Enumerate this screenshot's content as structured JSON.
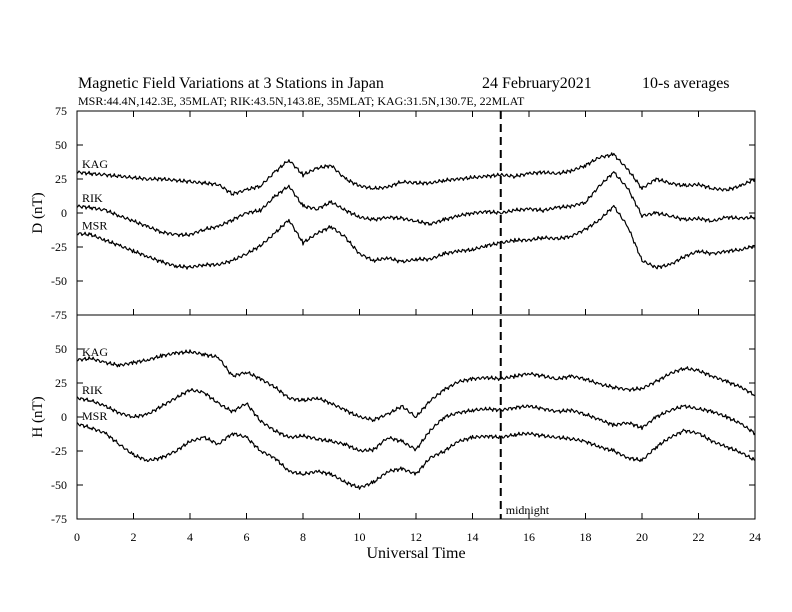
{
  "chart_data": {
    "type": "line",
    "title": "Magnetic Field Variations at 3 Stations in Japan",
    "date": "24 February2021",
    "averaging": "10-s averages",
    "subtitle": "MSR:44.4N,142.3E, 35MLAT;  RIK:43.5N,143.8E, 35MLAT;  KAG:31.5N,130.7E, 22MLAT",
    "xlabel": "Universal Time",
    "xlim": [
      0,
      24
    ],
    "xticks": [
      "0",
      "2",
      "4",
      "6",
      "8",
      "10",
      "12",
      "14",
      "16",
      "18",
      "20",
      "22",
      "24"
    ],
    "grid": false,
    "annotation": {
      "x": 15,
      "label": "midnight",
      "style": "dashed"
    },
    "panels": [
      {
        "ylabel": "D (nT)",
        "ylim": [
          -75,
          75
        ],
        "yticks": [
          "75",
          "50",
          "25",
          "0",
          "-25",
          "-50",
          "-75"
        ],
        "series": [
          {
            "name": "KAG",
            "x": [
              0,
              0.5,
              1,
              1.5,
              2,
              2.5,
              3,
              3.5,
              4,
              4.5,
              5,
              5.5,
              6,
              6.5,
              7,
              7.5,
              8,
              8.5,
              9,
              9.5,
              10,
              10.5,
              11,
              11.5,
              12,
              12.5,
              13,
              13.5,
              14,
              14.5,
              15,
              15.5,
              16,
              16.5,
              17,
              17.5,
              18,
              18.5,
              19,
              19.5,
              20,
              20.5,
              21,
              21.5,
              22,
              22.5,
              23,
              23.5,
              24
            ],
            "y": [
              30,
              29,
              28,
              27,
              26,
              25,
              25,
              24,
              23,
              22,
              21,
              14,
              17,
              20,
              30,
              39,
              28,
              33,
              35,
              25,
              20,
              18,
              19,
              23,
              22,
              22,
              24,
              25,
              26,
              27,
              28,
              27,
              29,
              30,
              29,
              31,
              35,
              41,
              43,
              32,
              18,
              25,
              22,
              20,
              21,
              18,
              17,
              20,
              25
            ]
          },
          {
            "name": "RIK",
            "x": [
              0,
              0.5,
              1,
              1.5,
              2,
              2.5,
              3,
              3.5,
              4,
              4.5,
              5,
              5.5,
              6,
              6.5,
              7,
              7.5,
              8,
              8.5,
              9,
              9.5,
              10,
              10.5,
              11,
              11.5,
              12,
              12.5,
              13,
              13.5,
              14,
              14.5,
              15,
              15.5,
              16,
              16.5,
              17,
              17.5,
              18,
              18.5,
              19,
              19.5,
              20,
              20.5,
              21,
              21.5,
              22,
              22.5,
              23,
              23.5,
              24
            ],
            "y": [
              5,
              4,
              2,
              -2,
              -6,
              -10,
              -14,
              -16,
              -16,
              -12,
              -10,
              -5,
              0,
              2,
              12,
              20,
              5,
              3,
              8,
              2,
              -3,
              -5,
              -3,
              -4,
              -6,
              -8,
              -5,
              -2,
              0,
              1,
              0,
              2,
              3,
              2,
              4,
              5,
              8,
              20,
              30,
              18,
              -2,
              0,
              -2,
              -5,
              -4,
              -6,
              -3,
              -4,
              -3
            ]
          },
          {
            "name": "MSR",
            "x": [
              0,
              0.5,
              1,
              1.5,
              2,
              2.5,
              3,
              3.5,
              4,
              4.5,
              5,
              5.5,
              6,
              6.5,
              7,
              7.5,
              8,
              8.5,
              9,
              9.5,
              10,
              10.5,
              11,
              11.5,
              12,
              12.5,
              13,
              13.5,
              14,
              14.5,
              15,
              15.5,
              16,
              16.5,
              17,
              17.5,
              18,
              18.5,
              19,
              19.5,
              20,
              20.5,
              21,
              21.5,
              22,
              22.5,
              23,
              23.5,
              24
            ],
            "y": [
              -15,
              -16,
              -20,
              -24,
              -28,
              -32,
              -36,
              -39,
              -40,
              -38,
              -38,
              -35,
              -30,
              -24,
              -15,
              -5,
              -22,
              -15,
              -10,
              -18,
              -30,
              -35,
              -33,
              -36,
              -34,
              -34,
              -30,
              -28,
              -27,
              -24,
              -22,
              -20,
              -20,
              -18,
              -19,
              -17,
              -12,
              -5,
              5,
              -10,
              -35,
              -40,
              -38,
              -32,
              -28,
              -30,
              -28,
              -27,
              -24
            ]
          }
        ]
      },
      {
        "ylabel": "H (nT)",
        "ylim": [
          -75,
          75
        ],
        "yticks": [
          "75",
          "50",
          "25",
          "0",
          "-25",
          "-50",
          "-75"
        ],
        "series": [
          {
            "name": "KAG",
            "x": [
              0,
              0.5,
              1,
              1.5,
              2,
              2.5,
              3,
              3.5,
              4,
              4.5,
              5,
              5.5,
              6,
              6.5,
              7,
              7.5,
              8,
              8.5,
              9,
              9.5,
              10,
              10.5,
              11,
              11.5,
              12,
              12.5,
              13,
              13.5,
              14,
              14.5,
              15,
              15.5,
              16,
              16.5,
              17,
              17.5,
              18,
              18.5,
              19,
              19.5,
              20,
              20.5,
              21,
              21.5,
              22,
              22.5,
              23,
              23.5,
              24
            ],
            "y": [
              42,
              43,
              40,
              38,
              40,
              42,
              45,
              47,
              48,
              46,
              44,
              30,
              33,
              28,
              22,
              14,
              12,
              14,
              10,
              5,
              0,
              -2,
              2,
              8,
              0,
              12,
              20,
              26,
              28,
              29,
              28,
              30,
              32,
              30,
              28,
              30,
              28,
              24,
              22,
              20,
              21,
              26,
              32,
              36,
              34,
              30,
              26,
              22,
              16
            ]
          },
          {
            "name": "RIK",
            "x": [
              0,
              0.5,
              1,
              1.5,
              2,
              2.5,
              3,
              3.5,
              4,
              4.5,
              5,
              5.5,
              6,
              6.5,
              7,
              7.5,
              8,
              8.5,
              9,
              9.5,
              10,
              10.5,
              11,
              11.5,
              12,
              12.5,
              13,
              13.5,
              14,
              14.5,
              15,
              15.5,
              16,
              16.5,
              17,
              17.5,
              18,
              18.5,
              19,
              19.5,
              20,
              20.5,
              21,
              21.5,
              22,
              22.5,
              23,
              23.5,
              24
            ],
            "y": [
              14,
              12,
              8,
              3,
              0,
              2,
              8,
              14,
              20,
              18,
              10,
              4,
              10,
              -3,
              -10,
              -15,
              -14,
              -16,
              -18,
              -20,
              -25,
              -24,
              -15,
              -18,
              -24,
              -10,
              0,
              3,
              5,
              6,
              5,
              7,
              8,
              6,
              4,
              5,
              2,
              -2,
              -6,
              -4,
              -8,
              0,
              5,
              8,
              6,
              4,
              0,
              -5,
              -12
            ]
          },
          {
            "name": "MSR",
            "x": [
              0,
              0.5,
              1,
              1.5,
              2,
              2.5,
              3,
              3.5,
              4,
              4.5,
              5,
              5.5,
              6,
              6.5,
              7,
              7.5,
              8,
              8.5,
              9,
              9.5,
              10,
              10.5,
              11,
              11.5,
              12,
              12.5,
              13,
              13.5,
              14,
              14.5,
              15,
              15.5,
              16,
              16.5,
              17,
              17.5,
              18,
              18.5,
              19,
              19.5,
              20,
              20.5,
              21,
              21.5,
              22,
              22.5,
              23,
              23.5,
              24
            ],
            "y": [
              -5,
              -8,
              -12,
              -20,
              -28,
              -32,
              -30,
              -25,
              -18,
              -15,
              -20,
              -12,
              -15,
              -25,
              -30,
              -40,
              -42,
              -40,
              -42,
              -48,
              -52,
              -48,
              -40,
              -38,
              -42,
              -30,
              -25,
              -18,
              -15,
              -14,
              -15,
              -13,
              -12,
              -14,
              -15,
              -16,
              -18,
              -22,
              -25,
              -30,
              -32,
              -22,
              -15,
              -10,
              -12,
              -18,
              -22,
              -26,
              -32
            ]
          }
        ]
      }
    ]
  }
}
